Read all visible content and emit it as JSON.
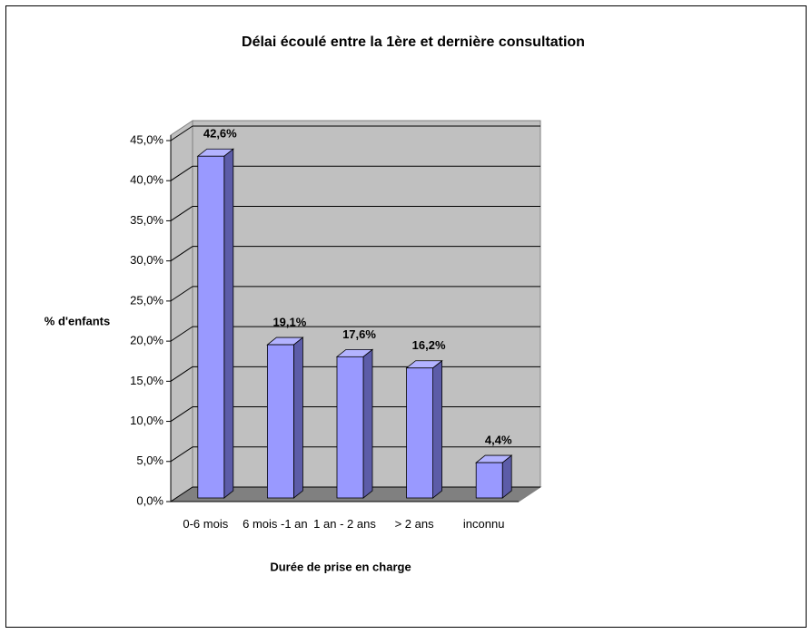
{
  "chart_data": {
    "type": "bar",
    "title": "Délai écoulé entre la 1ère et dernière consultation",
    "y_label": "% d'enfants",
    "x_label": "Durée de prise en charge",
    "categories": [
      "0-6 mois",
      "6 mois -1 an",
      "1 an - 2 ans",
      "> 2 ans",
      "inconnu"
    ],
    "values": [
      42.6,
      19.1,
      17.6,
      16.2,
      4.4
    ],
    "value_labels": [
      "42,6%",
      "19,1%",
      "17,6%",
      "16,2%",
      "4,4%"
    ],
    "color": "#9999ff",
    "ylim": [
      0,
      45
    ],
    "yticks": [
      {
        "value": 0,
        "label": "0,0%"
      },
      {
        "value": 5,
        "label": "5,0%"
      },
      {
        "value": 10,
        "label": "10,0%"
      },
      {
        "value": 15,
        "label": "15,0%"
      },
      {
        "value": 20,
        "label": "20,0%"
      },
      {
        "value": 25,
        "label": "25,0%"
      },
      {
        "value": 30,
        "label": "30,0%"
      },
      {
        "value": 35,
        "label": "35,0%"
      },
      {
        "value": 40,
        "label": "40,0%"
      },
      {
        "value": 45,
        "label": "45,0%"
      }
    ],
    "grid": true
  }
}
